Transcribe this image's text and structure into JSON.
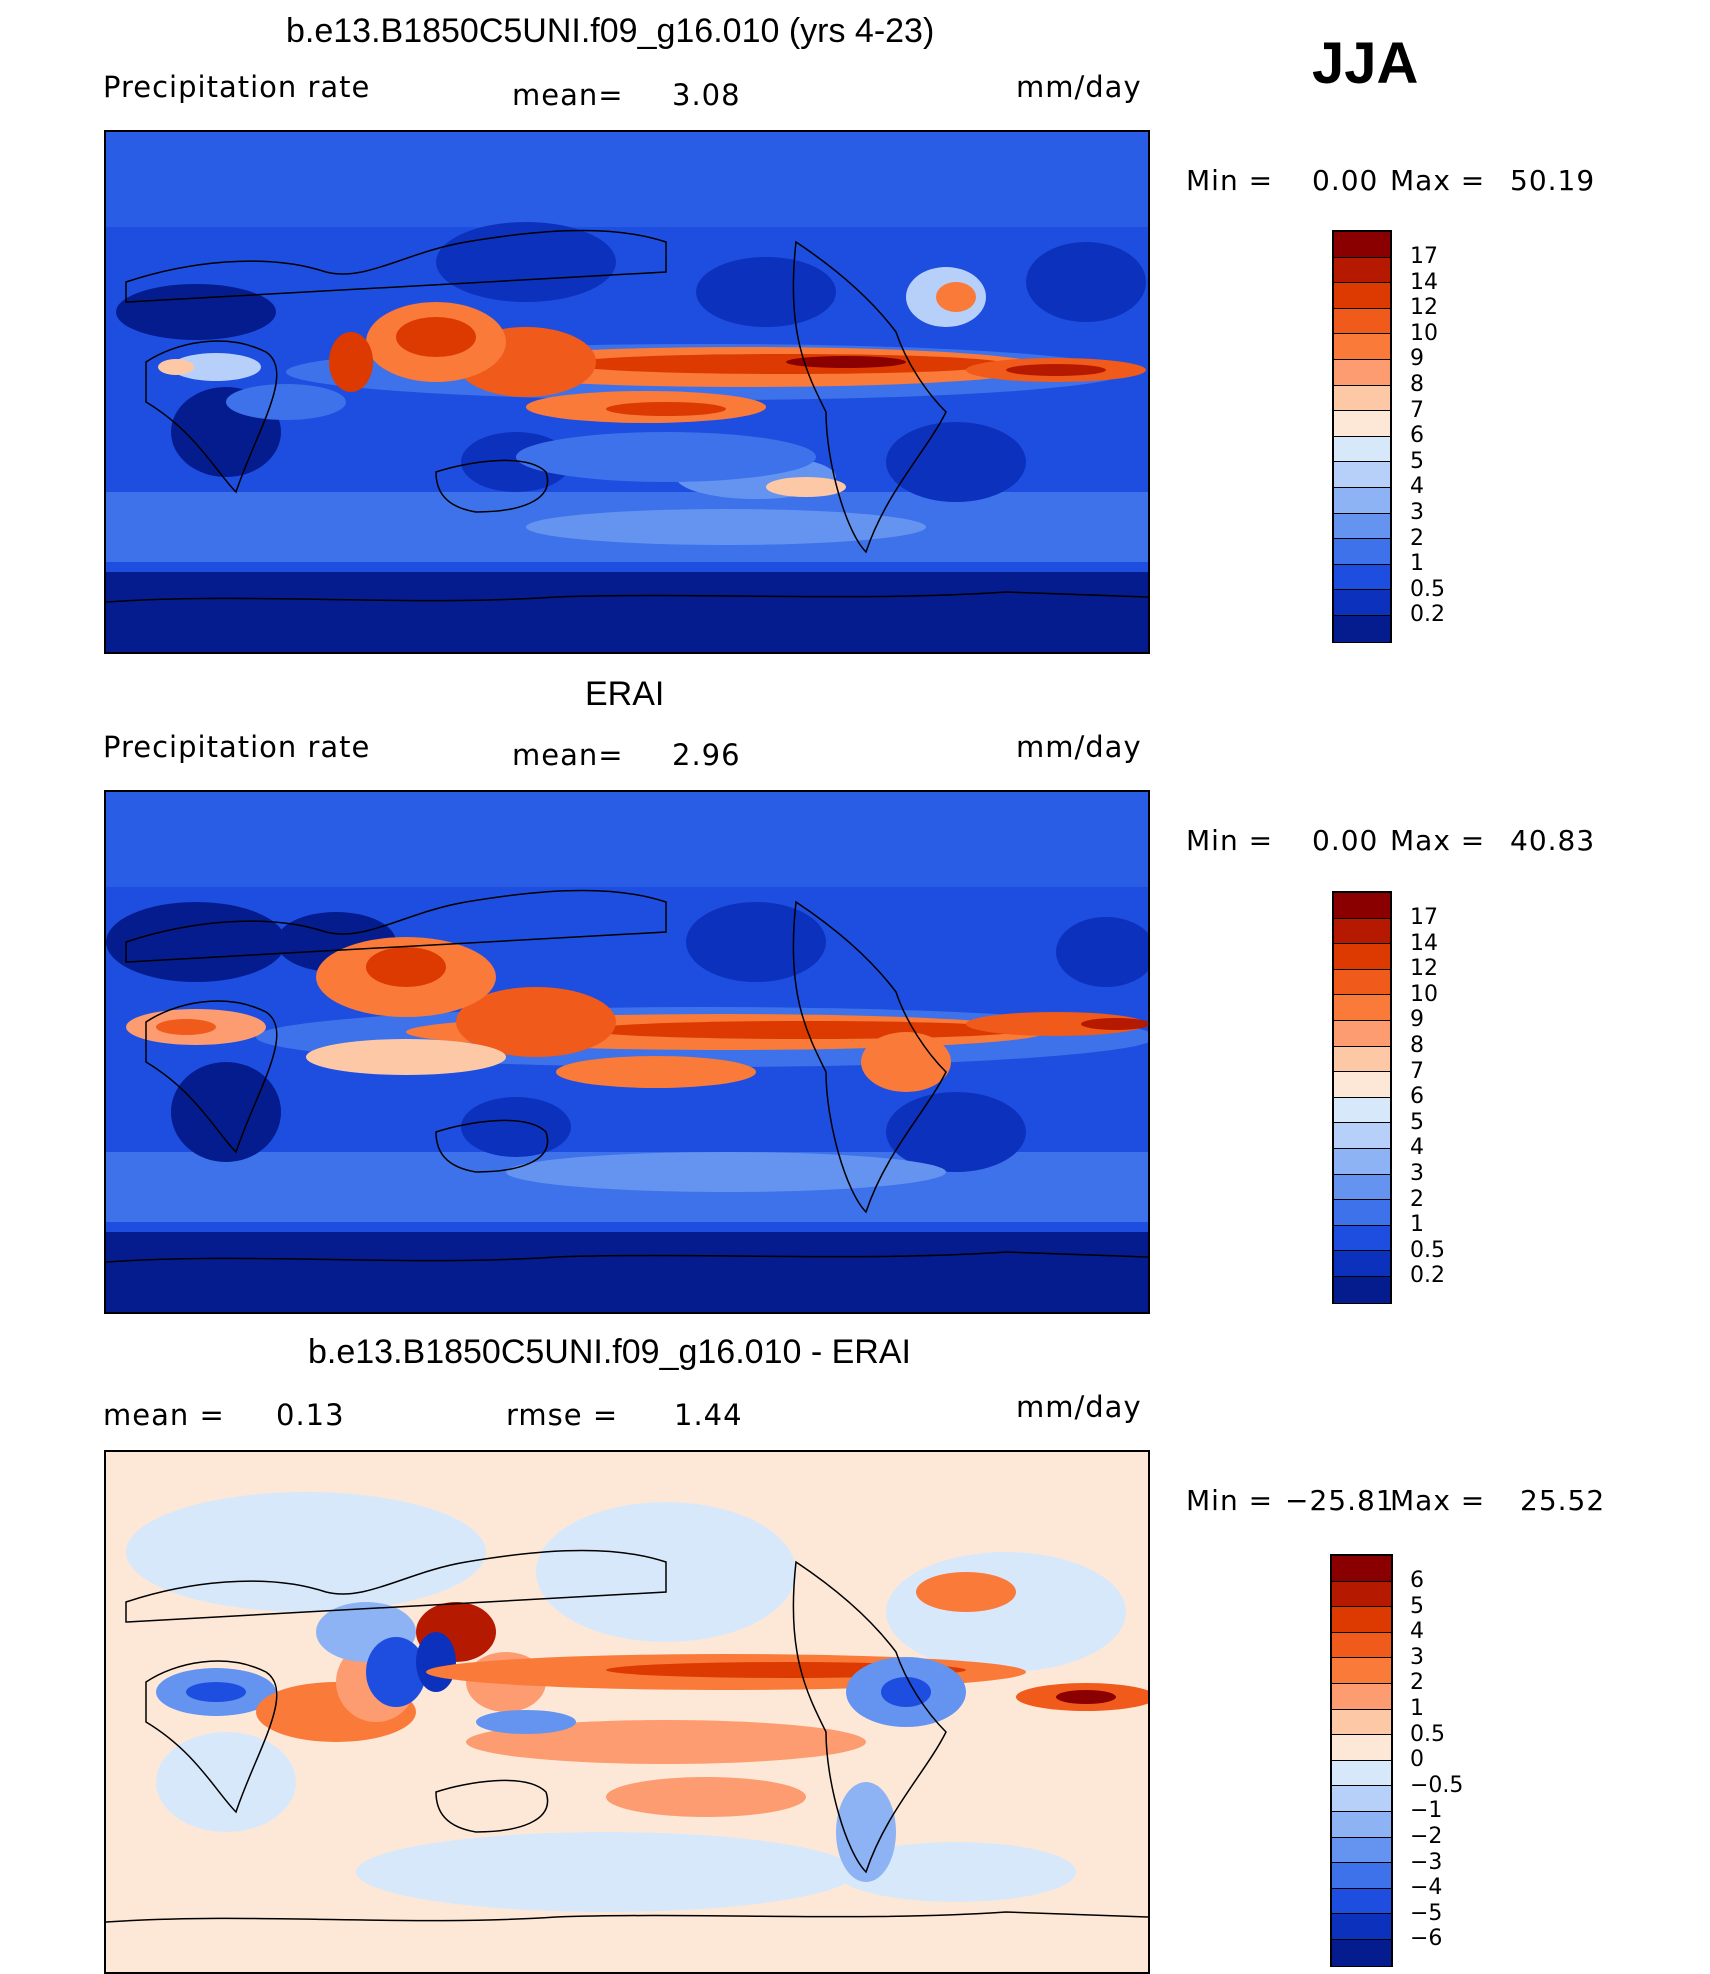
{
  "season": "JJA",
  "panels": [
    {
      "id": "model",
      "title": "b.e13.B1850C5UNI.f09_g16.010 (yrs 4-23)",
      "left_label": "Precipitation  rate",
      "mid_label": "mean=",
      "mid_value": "3.08",
      "units": "mm/day",
      "min_label": "Min  =",
      "min_value": "0.00",
      "max_label": "Max  =",
      "max_value": "50.19",
      "colorbar_labels": [
        "17",
        "14",
        "12",
        "10",
        "9",
        "8",
        "7",
        "6",
        "5",
        "4",
        "3",
        "2",
        "1",
        "0.5",
        "0.2"
      ],
      "colorbar_colors": [
        "#8a0000",
        "#b51a00",
        "#dc3a00",
        "#f05a1a",
        "#fa7a3a",
        "#fc9c70",
        "#fdc8a6",
        "#fde8d8",
        "#d8e8fb",
        "#b6d0fa",
        "#8db3f4",
        "#6494ef",
        "#3e72ea",
        "#1d4ee0",
        "#0c31bd",
        "#041c8e"
      ]
    },
    {
      "id": "obs",
      "title": "ERAI",
      "left_label": "Precipitation  rate",
      "mid_label": "mean=",
      "mid_value": "2.96",
      "units": "mm/day",
      "min_label": "Min  =",
      "min_value": "0.00",
      "max_label": "Max  =",
      "max_value": "40.83",
      "colorbar_labels": [
        "17",
        "14",
        "12",
        "10",
        "9",
        "8",
        "7",
        "6",
        "5",
        "4",
        "3",
        "2",
        "1",
        "0.5",
        "0.2"
      ],
      "colorbar_colors": [
        "#8a0000",
        "#b51a00",
        "#dc3a00",
        "#f05a1a",
        "#fa7a3a",
        "#fc9c70",
        "#fdc8a6",
        "#fde8d8",
        "#d8e8fb",
        "#b6d0fa",
        "#8db3f4",
        "#6494ef",
        "#3e72ea",
        "#1d4ee0",
        "#0c31bd",
        "#041c8e"
      ]
    },
    {
      "id": "diff",
      "title": "b.e13.B1850C5UNI.f09_g16.010 - ERAI",
      "left_label": "mean  =",
      "left_value": "0.13",
      "mid_label": "rmse  =",
      "mid_value": "1.44",
      "units": "mm/day",
      "min_label": "Min  =",
      "min_value": "−25.81",
      "max_label": "Max  =",
      "max_value": "25.52",
      "colorbar_labels": [
        "6",
        "5",
        "4",
        "3",
        "2",
        "1",
        "0.5",
        "0",
        "−0.5",
        "−1",
        "−2",
        "−3",
        "−4",
        "−5",
        "−6"
      ],
      "colorbar_colors": [
        "#8a0000",
        "#b51a00",
        "#dc3a00",
        "#f05a1a",
        "#fa7a3a",
        "#fc9c70",
        "#fdc8a6",
        "#fde8d8",
        "#d8e8fb",
        "#b6d0fa",
        "#8db3f4",
        "#6494ef",
        "#3e72ea",
        "#1d4ee0",
        "#0c31bd",
        "#041c8e"
      ]
    }
  ]
}
